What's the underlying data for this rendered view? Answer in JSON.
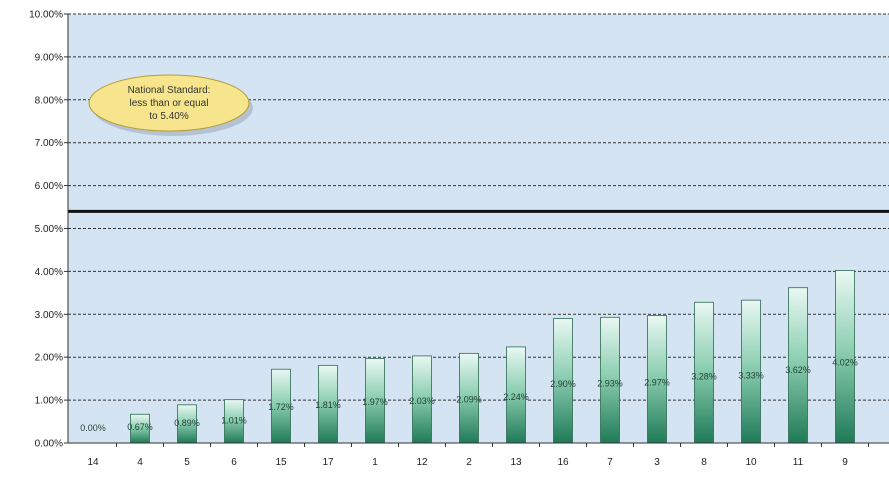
{
  "chart_data": {
    "type": "bar",
    "categories": [
      "14",
      "4",
      "5",
      "6",
      "15",
      "17",
      "1",
      "12",
      "2",
      "13",
      "16",
      "7",
      "3",
      "8",
      "10",
      "11",
      "9"
    ],
    "values": [
      0.0,
      0.67,
      0.89,
      1.01,
      1.72,
      1.81,
      1.97,
      2.03,
      2.09,
      2.24,
      2.9,
      2.93,
      2.97,
      3.28,
      3.33,
      3.62,
      4.02
    ],
    "data_labels": [
      "0.00%",
      "0.67%",
      "0.89%",
      "1.01%",
      "1.72%",
      "1.81%",
      "1.97%",
      "2.03%",
      "2.09%",
      "2.24%",
      "2.90%",
      "2.93%",
      "2.97%",
      "3.28%",
      "3.33%",
      "3.62%",
      "4.02%"
    ],
    "ylim": [
      0,
      10
    ],
    "yticks": [
      0,
      1,
      2,
      3,
      4,
      5,
      6,
      7,
      8,
      9,
      10
    ],
    "ytick_labels": [
      "0.00%",
      "1.00%",
      "2.00%",
      "3.00%",
      "4.00%",
      "5.00%",
      "6.00%",
      "7.00%",
      "8.00%",
      "9.00%",
      "10.00%"
    ],
    "grid": true,
    "reference_line": {
      "value": 5.4
    },
    "annotation": {
      "lines": [
        "National Standard:",
        "less than or equal",
        "to 5.40%"
      ]
    },
    "colors": {
      "bar_top": "#e9f8f3",
      "bar_mid": "#8fd0b4",
      "bar_bottom": "#1f7a57",
      "bar_outline": "#2f6b52",
      "plot_bg": "#d5e4f3",
      "callout_fill": "#f6e58c",
      "callout_stroke": "#b49b38",
      "reference_line": "#111111"
    }
  }
}
